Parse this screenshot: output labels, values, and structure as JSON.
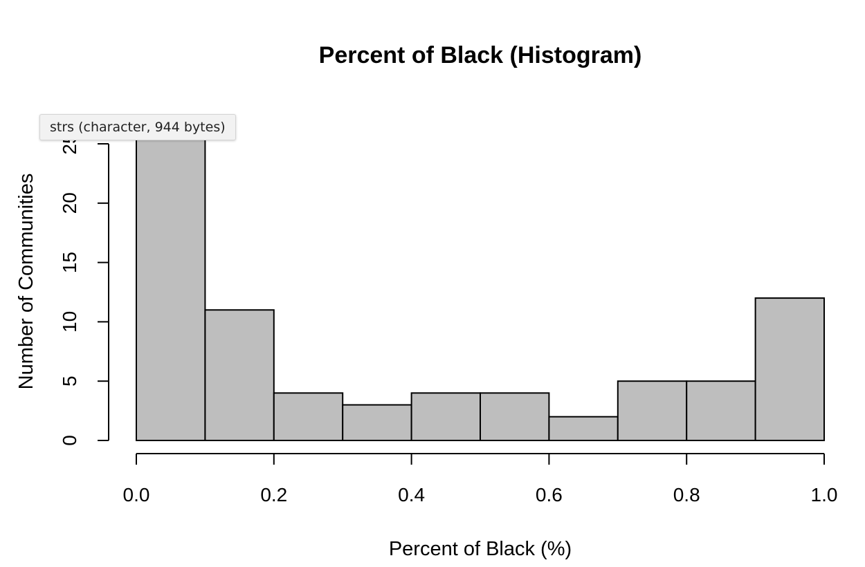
{
  "chart_data": {
    "type": "bar",
    "title": "Percent of Black (Histogram)",
    "xlabel": "Percent of Black (%)",
    "ylabel": "Number of Communities",
    "bins": [
      {
        "start": 0.0,
        "end": 0.1,
        "count": 26
      },
      {
        "start": 0.1,
        "end": 0.2,
        "count": 11
      },
      {
        "start": 0.2,
        "end": 0.3,
        "count": 4
      },
      {
        "start": 0.3,
        "end": 0.4,
        "count": 3
      },
      {
        "start": 0.4,
        "end": 0.5,
        "count": 4
      },
      {
        "start": 0.5,
        "end": 0.6,
        "count": 4
      },
      {
        "start": 0.6,
        "end": 0.7,
        "count": 2
      },
      {
        "start": 0.7,
        "end": 0.8,
        "count": 5
      },
      {
        "start": 0.8,
        "end": 0.9,
        "count": 5
      },
      {
        "start": 0.9,
        "end": 1.0,
        "count": 12
      }
    ],
    "xlim": [
      0.0,
      1.0
    ],
    "ylim": [
      0,
      25
    ],
    "x_ticks": [
      "0.0",
      "0.2",
      "0.4",
      "0.6",
      "0.8",
      "1.0"
    ],
    "y_ticks": [
      "0",
      "5",
      "10",
      "15",
      "20",
      "25"
    ],
    "bar_color": "#bebebe",
    "grid": false
  },
  "tooltip": {
    "text": "strs (character, 944 bytes)"
  }
}
